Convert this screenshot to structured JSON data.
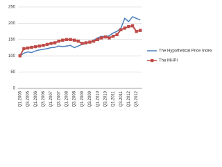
{
  "chart_data": {
    "type": "line",
    "categories": [
      "Q1.2005",
      null,
      "Q3.2005",
      null,
      "Q1.2006",
      null,
      "Q3.2006",
      null,
      "Q1.2007",
      null,
      "Q3.2007",
      null,
      "Q1.2008",
      null,
      "Q3.2008",
      null,
      "Q1.2009",
      null,
      "Q3.2009",
      null,
      "Q1.2010",
      null,
      "Q3.2010",
      null,
      "Q1.2011",
      null,
      "Q3.2011",
      null,
      "Q1.2012",
      null,
      "Q3.2012",
      null
    ],
    "series": [
      {
        "name": "The Hypothetical Price Index",
        "color": "#4a7ebb",
        "marker": "none",
        "values": [
          100,
          108,
          112,
          110,
          115,
          118,
          120,
          122,
          125,
          126,
          130,
          128,
          130,
          132,
          125,
          130,
          135,
          138,
          142,
          148,
          155,
          160,
          158,
          162,
          170,
          175,
          185,
          215,
          205,
          220,
          215,
          210
        ]
      },
      {
        "name": "The MHPI",
        "color": "#be4b48",
        "marker": "square",
        "values": [
          100,
          122,
          124,
          126,
          128,
          130,
          132,
          135,
          138,
          140,
          145,
          148,
          150,
          150,
          148,
          145,
          138,
          140,
          142,
          145,
          150,
          155,
          158,
          155,
          160,
          165,
          180,
          185,
          190,
          192,
          175,
          178
        ]
      }
    ],
    "ylim": [
      0,
      250
    ],
    "yticks": [
      0,
      50,
      100,
      150,
      200,
      250
    ],
    "grid": true,
    "legend": "right"
  }
}
